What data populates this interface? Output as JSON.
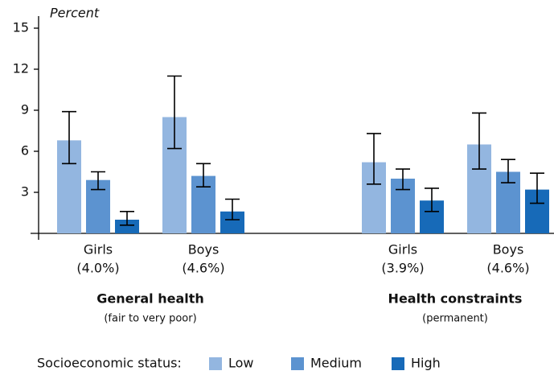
{
  "chart_data": {
    "type": "bar",
    "ylabel": "Percent",
    "categories": [
      "Girls",
      "Boys",
      "Girls",
      "Boys"
    ],
    "category_notes": [
      "(4.0%)",
      "(4.6%)",
      "(3.9%)",
      "(4.6%)"
    ],
    "groups": [
      {
        "label": "General health",
        "note": "(fair to very poor)"
      },
      {
        "label": "Health constraints",
        "note": "(permanent)"
      }
    ],
    "legend_title": "Socioeconomic status:",
    "series": [
      {
        "name": "Low",
        "color": "#93b6e0",
        "values": [
          6.8,
          8.5,
          5.2,
          6.5
        ],
        "lower": [
          5.1,
          6.2,
          3.6,
          4.7
        ],
        "upper": [
          8.9,
          11.5,
          7.3,
          8.8
        ]
      },
      {
        "name": "Medium",
        "color": "#5c93d0",
        "values": [
          3.9,
          4.2,
          4.0,
          4.5
        ],
        "lower": [
          3.2,
          3.4,
          3.2,
          3.7
        ],
        "upper": [
          4.5,
          5.1,
          4.7,
          5.4
        ]
      },
      {
        "name": "High",
        "color": "#176ab8",
        "values": [
          1.0,
          1.6,
          2.4,
          3.2
        ],
        "lower": [
          0.6,
          1.0,
          1.6,
          2.2
        ],
        "upper": [
          1.6,
          2.5,
          3.3,
          4.4
        ]
      }
    ],
    "ylim": [
      0,
      15
    ],
    "yticks": [
      3,
      6,
      9,
      12,
      15
    ]
  }
}
